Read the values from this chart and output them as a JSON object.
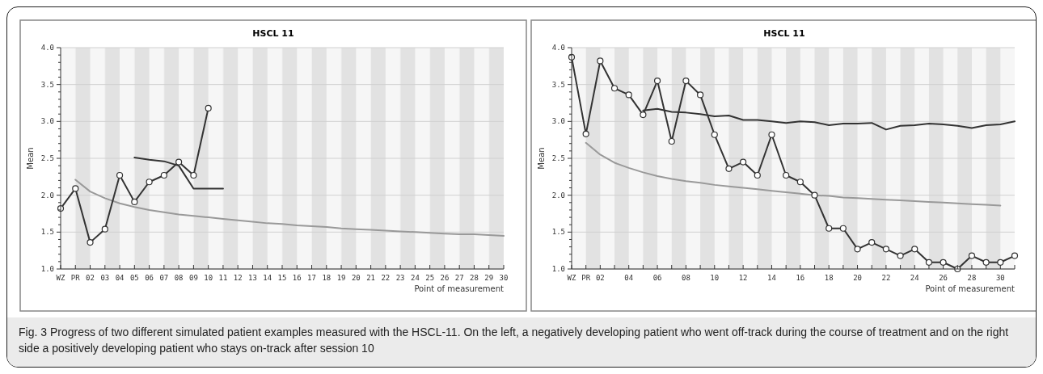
{
  "chart_data": [
    {
      "type": "line",
      "title": "HSCL 11",
      "xlabel": "Point of measurement",
      "ylabel": "Mean",
      "categories": [
        "WZ",
        "PR",
        "02",
        "03",
        "04",
        "05",
        "06",
        "07",
        "08",
        "09",
        "10",
        "11",
        "12",
        "13",
        "14",
        "15",
        "16",
        "17",
        "18",
        "19",
        "20",
        "21",
        "22",
        "23",
        "24",
        "25",
        "26",
        "27",
        "28",
        "29",
        "30"
      ],
      "ylim": [
        1,
        4
      ],
      "yticks": [
        {
          "value": 1,
          "label": "1.0"
        },
        {
          "value": 1.1,
          "label": null
        },
        {
          "value": 1.2,
          "label": null
        },
        {
          "value": 1.3,
          "label": null
        },
        {
          "value": 1.4,
          "label": null
        },
        {
          "value": 1.5,
          "label": "1.5"
        },
        {
          "value": 1.6,
          "label": null
        },
        {
          "value": 1.7,
          "label": null
        },
        {
          "value": 1.8,
          "label": null
        },
        {
          "value": 1.9,
          "label": null
        },
        {
          "value": 2,
          "label": "2.0"
        },
        {
          "value": 2.1,
          "label": null
        },
        {
          "value": 2.2,
          "label": null
        },
        {
          "value": 2.3,
          "label": null
        },
        {
          "value": 2.4,
          "label": null
        },
        {
          "value": 2.5,
          "label": "2.5"
        },
        {
          "value": 2.6,
          "label": null
        },
        {
          "value": 2.7,
          "label": null
        },
        {
          "value": 2.8,
          "label": null
        },
        {
          "value": 2.9,
          "label": null
        },
        {
          "value": 3,
          "label": "3.0"
        },
        {
          "value": 3.1,
          "label": null
        },
        {
          "value": 3.2,
          "label": null
        },
        {
          "value": 3.3,
          "label": null
        },
        {
          "value": 3.4,
          "label": null
        },
        {
          "value": 3.5,
          "label": "3.5"
        },
        {
          "value": 3.6,
          "label": null
        },
        {
          "value": 3.7,
          "label": null
        },
        {
          "value": 3.8,
          "label": null
        },
        {
          "value": 3.9,
          "label": null
        },
        {
          "value": 4,
          "label": "4.0"
        }
      ],
      "grid": "y",
      "series": [
        {
          "color": "#999999",
          "marker": "none",
          "values": [
            null,
            2.21,
            2.05,
            1.96,
            1.89,
            1.84,
            1.8,
            1.77,
            1.74,
            1.72,
            1.7,
            1.68,
            1.66,
            1.64,
            1.62,
            1.61,
            1.59,
            1.58,
            1.57,
            1.55,
            1.54,
            1.53,
            1.52,
            1.51,
            1.5,
            1.49,
            1.48,
            1.47,
            1.47,
            1.46,
            1.45
          ]
        },
        {
          "color": "#333333",
          "marker": "none",
          "values": [
            null,
            null,
            null,
            null,
            null,
            2.51,
            2.48,
            2.46,
            2.4,
            2.09,
            2.09,
            2.09,
            null,
            null,
            null,
            null,
            null,
            null,
            null,
            null,
            null,
            null,
            null,
            null,
            null,
            null,
            null,
            null,
            null,
            null,
            null
          ]
        },
        {
          "color": "#333333",
          "marker": "circle",
          "values": [
            1.82,
            2.09,
            1.36,
            1.54,
            2.27,
            1.91,
            2.18,
            2.27,
            2.45,
            2.27,
            3.18,
            null,
            null,
            null,
            null,
            null,
            null,
            null,
            null,
            null,
            null,
            null,
            null,
            null,
            null,
            null,
            null,
            null,
            null,
            null,
            null
          ]
        }
      ]
    },
    {
      "type": "line",
      "title": "HSCL 11",
      "xlabel": "Point of measurement",
      "ylabel": "Mean",
      "categories": [
        "WZ",
        "PR",
        "02",
        null,
        "04",
        null,
        "06",
        null,
        "08",
        null,
        "10",
        null,
        "12",
        null,
        "14",
        null,
        "16",
        null,
        "18",
        null,
        "20",
        null,
        "22",
        null,
        "24",
        null,
        "26",
        null,
        "28",
        null,
        "30",
        null
      ],
      "ylim": [
        1,
        4
      ],
      "yticks": [
        {
          "value": 1,
          "label": "1.0"
        },
        {
          "value": 1.1,
          "label": null
        },
        {
          "value": 1.2,
          "label": null
        },
        {
          "value": 1.3,
          "label": null
        },
        {
          "value": 1.4,
          "label": null
        },
        {
          "value": 1.5,
          "label": "1.5"
        },
        {
          "value": 1.6,
          "label": null
        },
        {
          "value": 1.7,
          "label": null
        },
        {
          "value": 1.8,
          "label": null
        },
        {
          "value": 1.9,
          "label": null
        },
        {
          "value": 2,
          "label": "2.0"
        },
        {
          "value": 2.1,
          "label": null
        },
        {
          "value": 2.2,
          "label": null
        },
        {
          "value": 2.3,
          "label": null
        },
        {
          "value": 2.4,
          "label": null
        },
        {
          "value": 2.5,
          "label": "2.5"
        },
        {
          "value": 2.6,
          "label": null
        },
        {
          "value": 2.7,
          "label": null
        },
        {
          "value": 2.8,
          "label": null
        },
        {
          "value": 2.9,
          "label": null
        },
        {
          "value": 3,
          "label": "3.0"
        },
        {
          "value": 3.1,
          "label": null
        },
        {
          "value": 3.2,
          "label": null
        },
        {
          "value": 3.3,
          "label": null
        },
        {
          "value": 3.4,
          "label": null
        },
        {
          "value": 3.5,
          "label": "3.5"
        },
        {
          "value": 3.6,
          "label": null
        },
        {
          "value": 3.7,
          "label": null
        },
        {
          "value": 3.8,
          "label": null
        },
        {
          "value": 3.9,
          "label": null
        },
        {
          "value": 4,
          "label": "4.0"
        }
      ],
      "grid": "y",
      "series": [
        {
          "color": "#999999",
          "marker": "none",
          "values": [
            null,
            2.71,
            2.55,
            2.44,
            2.37,
            2.31,
            2.26,
            2.22,
            2.19,
            2.17,
            2.14,
            2.12,
            2.1,
            2.08,
            2.06,
            2.04,
            2.02,
            2,
            1.99,
            1.97,
            1.96,
            1.95,
            1.94,
            1.93,
            1.92,
            1.91,
            1.9,
            1.89,
            1.88,
            1.87,
            1.86,
            null
          ]
        },
        {
          "color": "#333333",
          "marker": "none",
          "values": [
            null,
            null,
            null,
            null,
            null,
            3.15,
            3.17,
            3.13,
            3.12,
            3.1,
            3.07,
            3.08,
            3.02,
            3.02,
            3,
            2.98,
            3,
            2.99,
            2.95,
            2.97,
            2.97,
            2.98,
            2.89,
            2.94,
            2.95,
            2.97,
            2.96,
            2.94,
            2.91,
            2.95,
            2.96,
            3
          ]
        },
        {
          "color": "#333333",
          "marker": "circle",
          "values": [
            3.87,
            2.83,
            3.82,
            3.45,
            3.36,
            3.09,
            3.55,
            2.73,
            3.55,
            3.36,
            2.82,
            2.36,
            2.45,
            2.27,
            2.82,
            2.27,
            2.18,
            2,
            1.55,
            1.55,
            1.27,
            1.36,
            1.27,
            1.18,
            1.27,
            1.09,
            1.09,
            1,
            1.18,
            1.09,
            1.09,
            1.18
          ]
        }
      ],
      "annotations": [
        "Fig. 3 Progress of two different simulated patient examples measured with the HSCL-11. On the left, a negatively developing patient who went off-track during the course of treatment and on the right side a positively developing patient who stays on-track after session 10"
      ]
    }
  ]
}
